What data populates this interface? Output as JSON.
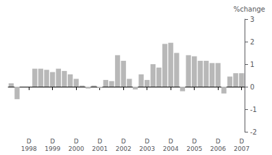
{
  "chart_data": {
    "type": "bar",
    "ylabel": "%change",
    "categories": [
      null,
      null,
      null,
      "D\n1998",
      null,
      null,
      null,
      "D\n1999",
      null,
      null,
      null,
      "D\n2000",
      null,
      null,
      null,
      "D\n2001",
      null,
      null,
      null,
      "D\n2002",
      null,
      null,
      null,
      "D\n2003",
      null,
      null,
      null,
      "D\n2004",
      null,
      null,
      null,
      "D\n2005",
      null,
      null,
      null,
      "D\n2006",
      null,
      null,
      null,
      "D\n2007"
    ],
    "values": [
      0.15,
      -0.55,
      0.0,
      0.0,
      0.8,
      0.8,
      0.75,
      0.65,
      0.8,
      0.7,
      0.55,
      0.35,
      0.05,
      -0.08,
      0.05,
      -0.06,
      0.3,
      0.25,
      1.4,
      1.15,
      0.35,
      -0.12,
      0.55,
      0.3,
      1.0,
      0.85,
      1.9,
      1.95,
      1.5,
      -0.2,
      1.4,
      1.35,
      1.15,
      1.15,
      1.05,
      1.05,
      -0.3,
      0.45,
      0.6,
      0.6
    ],
    "color": "#b8b8b8",
    "ylim": [
      -2,
      3
    ],
    "yticks": [
      -2,
      -1,
      0,
      1,
      2,
      3
    ],
    "grid": false
  }
}
